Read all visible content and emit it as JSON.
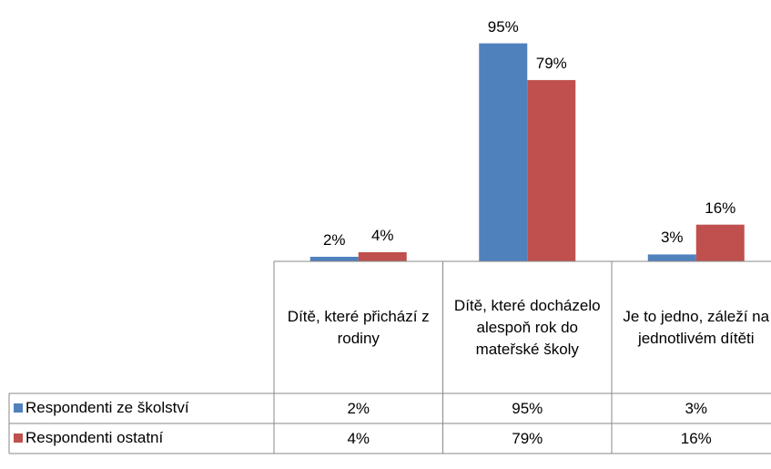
{
  "chart_data": {
    "type": "bar",
    "categories": [
      "Dítě, které přichází z rodiny",
      "Dítě, které docházelo alespoň rok do mateřské školy",
      "Je to jedno, záleží na jednotlivém dítěti"
    ],
    "series": [
      {
        "name": "Respondenti ze školství",
        "color": "#4f81bd",
        "values": [
          2,
          95,
          3
        ],
        "value_labels": [
          "2%",
          "95%",
          "3%"
        ]
      },
      {
        "name": "Respondenti ostatní",
        "color": "#c0504d",
        "values": [
          4,
          79,
          16
        ],
        "value_labels": [
          "4%",
          "79%",
          "16%"
        ]
      }
    ],
    "ylim": [
      0,
      100
    ]
  }
}
